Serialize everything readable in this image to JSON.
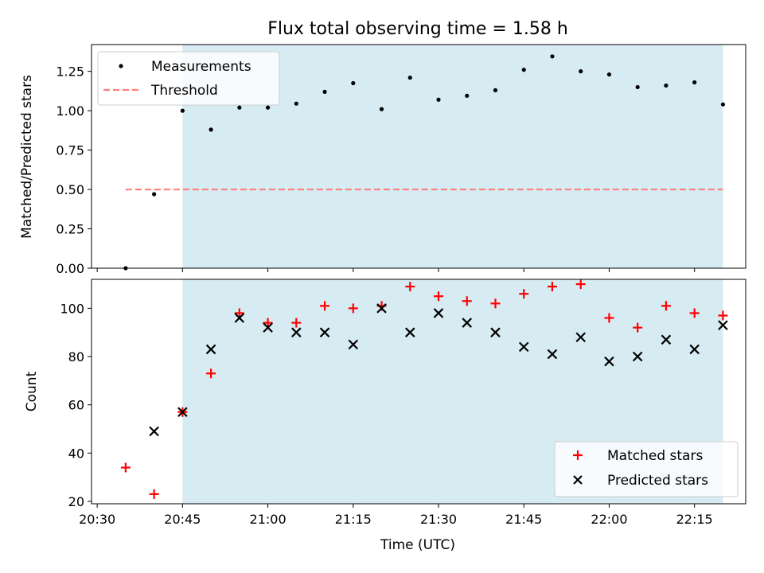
{
  "figure": {
    "title": "Flux total observing time = 1.58 h",
    "xlabel": "Time (UTC)"
  },
  "colors": {
    "span": "#add8e6",
    "threshold": "#ff7f7f",
    "measurement": "#000000",
    "matched": "#ff0000",
    "predicted": "#000000"
  },
  "chart_data": [
    {
      "type": "scatter",
      "panel": "top",
      "title": "Flux total observing time = 1.58 h",
      "ylabel": "Matched/Predicted stars",
      "xlabel": "",
      "xlim": [
        "20:29",
        "22:24"
      ],
      "ylim": [
        0,
        1.42
      ],
      "grid": false,
      "legend_position": "top-left",
      "shaded_span": [
        "20:45",
        "22:20"
      ],
      "x_ticks": [
        "20:30",
        "20:45",
        "21:00",
        "21:15",
        "21:30",
        "21:45",
        "22:00",
        "22:15"
      ],
      "y_ticks": [
        "0.00",
        "0.25",
        "0.50",
        "0.75",
        "1.00",
        "1.25"
      ],
      "series": [
        {
          "name": "Measurements",
          "kind": "dots",
          "x": [
            "20:35",
            "20:40",
            "20:45",
            "20:50",
            "20:55",
            "21:00",
            "21:05",
            "21:10",
            "21:15",
            "21:20",
            "21:25",
            "21:30",
            "21:35",
            "21:40",
            "21:45",
            "21:50",
            "21:55",
            "22:00",
            "22:05",
            "22:10",
            "22:15",
            "22:20"
          ],
          "y": [
            0.0,
            0.47,
            1.0,
            0.88,
            1.02,
            1.02,
            1.045,
            1.12,
            1.175,
            1.01,
            1.21,
            1.07,
            1.095,
            1.13,
            1.26,
            1.345,
            1.25,
            1.23,
            1.15,
            1.16,
            1.18,
            1.04
          ]
        },
        {
          "name": "Threshold",
          "kind": "dashed-line",
          "x": [
            "20:35",
            "22:20"
          ],
          "y": [
            0.5,
            0.5
          ]
        }
      ]
    },
    {
      "type": "scatter",
      "panel": "bottom",
      "ylabel": "Count",
      "xlabel": "Time (UTC)",
      "xlim": [
        "20:29",
        "22:24"
      ],
      "ylim": [
        19,
        112
      ],
      "grid": false,
      "legend_position": "bottom-right",
      "shaded_span": [
        "20:45",
        "22:20"
      ],
      "x_ticks": [
        "20:30",
        "20:45",
        "21:00",
        "21:15",
        "21:30",
        "21:45",
        "22:00",
        "22:15"
      ],
      "y_ticks": [
        "20",
        "40",
        "60",
        "80",
        "100"
      ],
      "series": [
        {
          "name": "Matched stars",
          "kind": "plus",
          "x": [
            "20:35",
            "20:40",
            "20:45",
            "20:50",
            "20:55",
            "21:00",
            "21:05",
            "21:10",
            "21:15",
            "21:20",
            "21:25",
            "21:30",
            "21:35",
            "21:40",
            "21:45",
            "21:50",
            "21:55",
            "22:00",
            "22:05",
            "22:10",
            "22:15",
            "22:20"
          ],
          "y": [
            34,
            23,
            57,
            73,
            98,
            94,
            94,
            101,
            100,
            101,
            109,
            105,
            103,
            102,
            106,
            109,
            110,
            96,
            92,
            101,
            98,
            97
          ]
        },
        {
          "name": "Predicted stars",
          "kind": "cross",
          "x": [
            "20:40",
            "20:45",
            "20:50",
            "20:55",
            "21:00",
            "21:05",
            "21:10",
            "21:15",
            "21:20",
            "21:25",
            "21:30",
            "21:35",
            "21:40",
            "21:45",
            "21:50",
            "21:55",
            "22:00",
            "22:05",
            "22:10",
            "22:15",
            "22:20"
          ],
          "y": [
            49,
            57,
            83,
            96,
            92,
            90,
            90,
            85,
            100,
            90,
            98,
            94,
            90,
            84,
            81,
            88,
            78,
            80,
            87,
            83,
            93
          ]
        }
      ]
    }
  ]
}
